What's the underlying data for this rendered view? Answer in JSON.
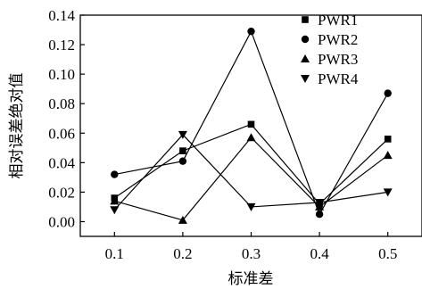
{
  "chart_data": {
    "type": "line",
    "xlabel": "标准差",
    "ylabel": "相对误差绝对值",
    "x": [
      0.1,
      0.2,
      0.3,
      0.4,
      0.5
    ],
    "x_ticks": [
      "0.1",
      "0.2",
      "0.3",
      "0.4",
      "0.5"
    ],
    "y_ticks": [
      "0.00",
      "0.02",
      "0.04",
      "0.06",
      "0.08",
      "0.10",
      "0.12",
      "0.14"
    ],
    "xlim": [
      0.05,
      0.55
    ],
    "ylim": [
      -0.01,
      0.14
    ],
    "legend_position": "top-right",
    "series": [
      {
        "name": "PWR1",
        "marker": "square",
        "values": [
          0.016,
          0.048,
          0.066,
          0.012,
          0.056
        ]
      },
      {
        "name": "PWR2",
        "marker": "circle",
        "values": [
          0.032,
          0.041,
          0.129,
          0.005,
          0.087
        ]
      },
      {
        "name": "PWR3",
        "marker": "triangle-up",
        "values": [
          0.014,
          0.001,
          0.057,
          0.01,
          0.045
        ]
      },
      {
        "name": "PWR4",
        "marker": "triangle-down",
        "values": [
          0.008,
          0.059,
          0.01,
          0.013,
          0.02
        ]
      }
    ]
  }
}
